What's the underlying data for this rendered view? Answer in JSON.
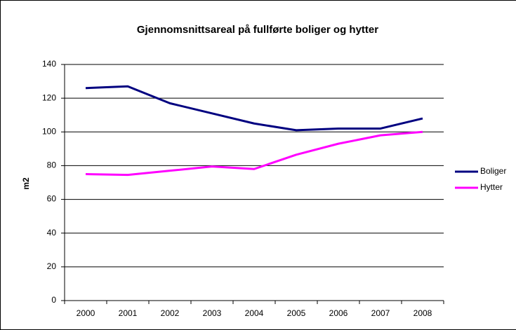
{
  "chart_data": {
    "type": "line",
    "title": "Gjennomsnittsareal på fullførte boliger og hytter",
    "y_label": "m2",
    "categories": [
      "2000",
      "2001",
      "2002",
      "2003",
      "2004",
      "2005",
      "2006",
      "2007",
      "2008"
    ],
    "series": [
      {
        "name": "Boliger",
        "color": "#000080",
        "values": [
          126,
          127,
          117,
          111,
          105,
          101,
          102,
          102,
          108
        ]
      },
      {
        "name": "Hytter",
        "color": "#ff00ff",
        "values": [
          75,
          74.5,
          77,
          79.5,
          78,
          86.5,
          93,
          98,
          100
        ]
      }
    ],
    "ylim": [
      0,
      140
    ],
    "yticks": [
      0,
      20,
      40,
      60,
      80,
      100,
      120,
      140
    ],
    "grid": true,
    "legend": "right"
  }
}
